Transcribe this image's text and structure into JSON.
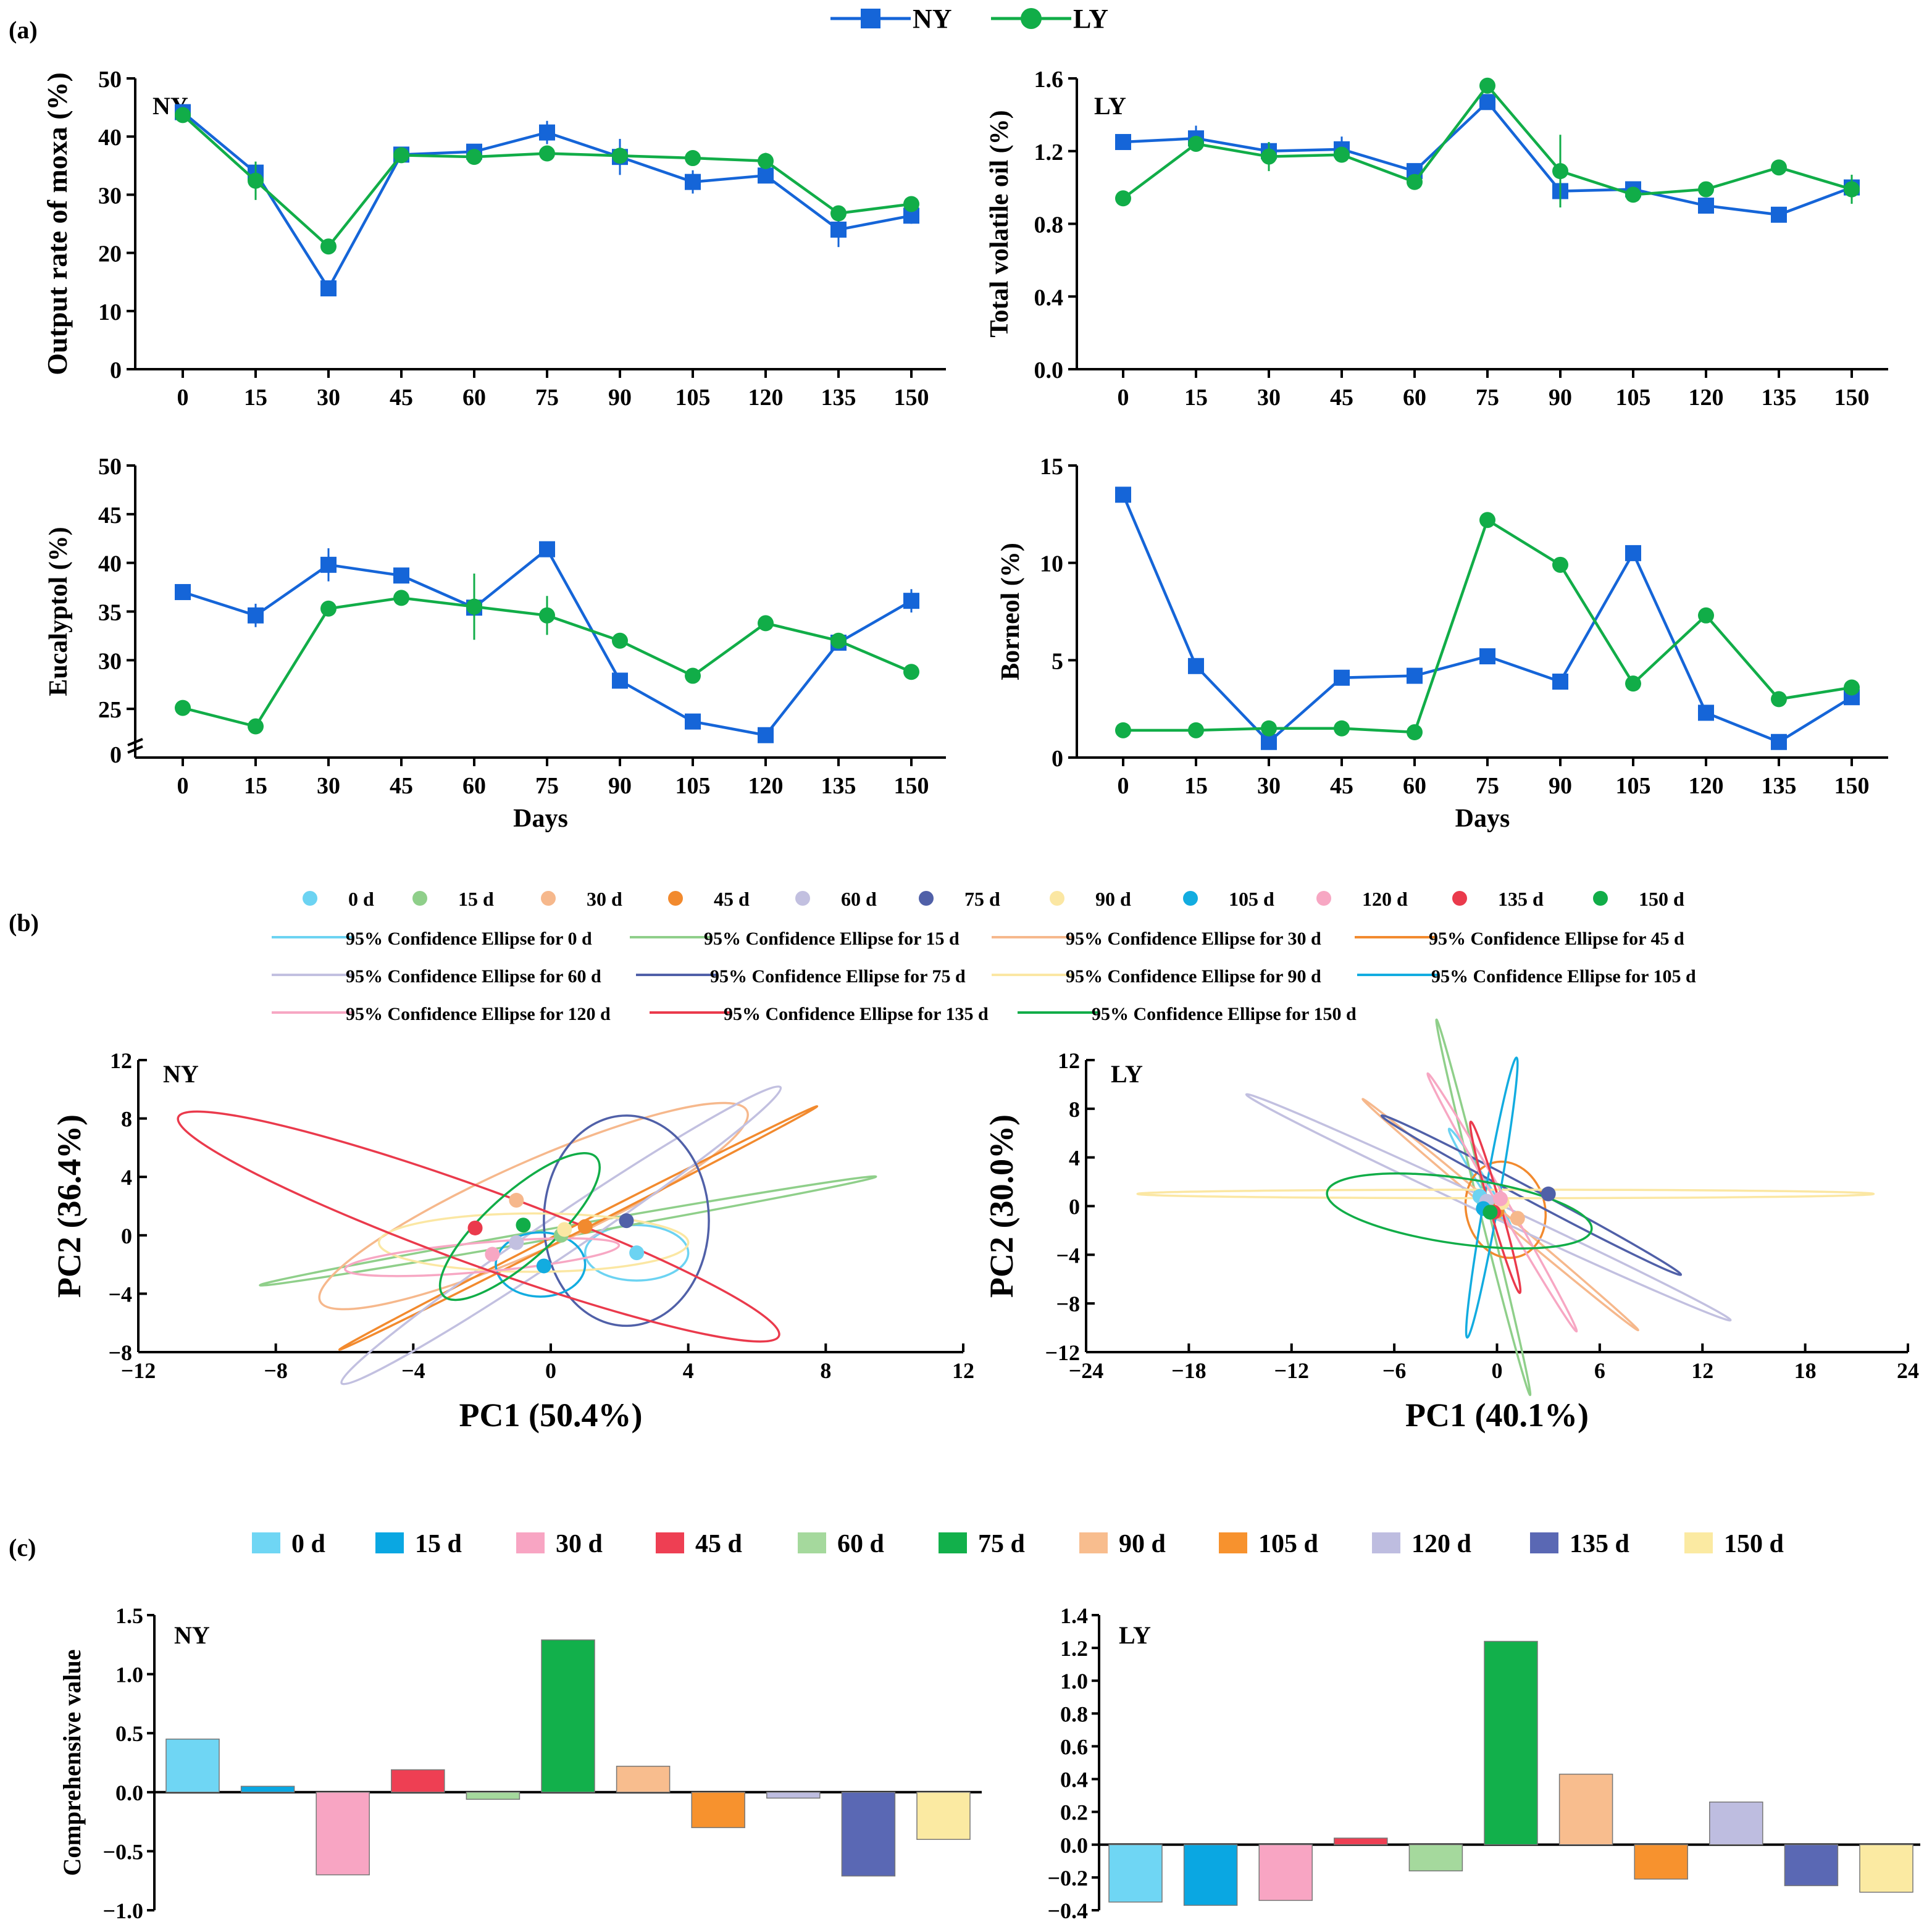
{
  "panels": {
    "a": "(a)",
    "b": "(b)",
    "c": "(c)"
  },
  "colors": {
    "NY": "#1565d8",
    "LY": "#11ad48",
    "d0": "#6cd3f2",
    "d15": "#8fcf8a",
    "d30": "#f6b88c",
    "d45": "#f28a2e",
    "d60": "#c2c0e0",
    "d75": "#5060a8",
    "d90": "#fbe7a3",
    "d105": "#12ace0",
    "d120": "#f7a7c3",
    "d135": "#ea3a4c",
    "d150": "#11ad48",
    "c_d0": "#6fd6f4",
    "c_d15": "#0aa7e2",
    "c_d30": "#f8a5c3",
    "c_d45": "#ee3f53",
    "c_d60": "#a5d99d",
    "c_d75": "#12b04b",
    "c_d90": "#f8bd8e",
    "c_d105": "#f7922e",
    "c_d120": "#bebde0",
    "c_d135": "#5a68b4",
    "c_d150": "#fbeaa2"
  },
  "legend_a": [
    {
      "label": "NY",
      "marker": "square"
    },
    {
      "label": "LY",
      "marker": "circle"
    }
  ],
  "legend_b": {
    "points": [
      "0 d",
      "15 d",
      "30 d",
      "45 d",
      "60 d",
      "75  d",
      "90 d",
      "105 d",
      "120 d",
      "135 d",
      "150 d"
    ],
    "ellipses": [
      "95% Confidence Ellipse for 0 d",
      "95% Confidence Ellipse for 15 d",
      "95% Confidence Ellipse for 30 d",
      "95% Confidence Ellipse for 45 d",
      "95% Confidence Ellipse for 60 d",
      "95% Confidence Ellipse for 75 d",
      "95% Confidence Ellipse for 90 d",
      "95% Confidence Ellipse for 105 d",
      "95% Confidence Ellipse for 120 d",
      "95% Confidence Ellipse for 135 d",
      "95% Confidence Ellipse for 150 d"
    ]
  },
  "legend_c": [
    "0 d",
    "15 d",
    "30 d",
    "45 d",
    "60 d",
    "75 d",
    "90 d",
    "105 d",
    "120 d",
    "135 d",
    "150 d"
  ],
  "chart_data": [
    {
      "type": "line",
      "id": "moxa",
      "tag": "NY",
      "ylabel": "Output rate of moxa (%)",
      "xlabel": "",
      "categories": [
        "0",
        "15",
        "30",
        "45",
        "60",
        "75",
        "90",
        "105",
        "120",
        "135",
        "150"
      ],
      "ylim": [
        0,
        50
      ],
      "yticks": [
        "0",
        "10",
        "20",
        "30",
        "40",
        "50"
      ],
      "ytick_values": [
        0,
        10,
        20,
        30,
        40,
        50
      ],
      "series": [
        {
          "name": "NY",
          "values": [
            44.2,
            33.8,
            13.9,
            36.9,
            37.4,
            40.7,
            36.5,
            32.2,
            33.3,
            24.0,
            26.4
          ],
          "errors": [
            0.6,
            1.0,
            0.5,
            0.8,
            0.7,
            2.0,
            3.1,
            2.0,
            0.7,
            3.0,
            1.4
          ]
        },
        {
          "name": "LY",
          "values": [
            43.7,
            32.4,
            21.1,
            36.8,
            36.5,
            37.1,
            36.7,
            36.3,
            35.8,
            26.8,
            28.4
          ],
          "errors": [
            0.5,
            3.3,
            0.6,
            0.6,
            0.5,
            0.6,
            1.0,
            0.5,
            1.4,
            0.4,
            0.5
          ]
        }
      ]
    },
    {
      "type": "line",
      "id": "oil",
      "tag": "LY",
      "ylabel": "Total volatile oil (%)",
      "xlabel": "",
      "categories": [
        "0",
        "15",
        "30",
        "45",
        "60",
        "75",
        "90",
        "105",
        "120",
        "135",
        "150"
      ],
      "ylim": [
        0,
        1.6
      ],
      "yticks": [
        "0.0",
        "0.4",
        "0.8",
        "1.2",
        "1.6"
      ],
      "ytick_values": [
        0,
        0.4,
        0.8,
        1.2,
        1.6
      ],
      "series": [
        {
          "name": "NY",
          "values": [
            1.25,
            1.27,
            1.2,
            1.21,
            1.09,
            1.47,
            0.98,
            0.99,
            0.9,
            0.85,
            1.0
          ],
          "errors": [
            0.02,
            0.07,
            0.05,
            0.07,
            0.03,
            0.03,
            0.02,
            0.02,
            0.03,
            0.02,
            0.02
          ]
        },
        {
          "name": "LY",
          "values": [
            0.94,
            1.24,
            1.17,
            1.18,
            1.03,
            1.56,
            1.09,
            0.96,
            0.99,
            1.11,
            0.99
          ],
          "errors": [
            0.02,
            0.03,
            0.08,
            0.03,
            0.03,
            0.03,
            0.2,
            0.02,
            0.02,
            0.02,
            0.08
          ]
        }
      ]
    },
    {
      "type": "line",
      "id": "eucalyptol",
      "tag": "",
      "ylabel": "Eucalyptol (%)",
      "xlabel": "Days",
      "categories": [
        "0",
        "15",
        "30",
        "45",
        "60",
        "75",
        "90",
        "105",
        "120",
        "135",
        "150"
      ],
      "axis_break": true,
      "ylim": [
        20,
        50
      ],
      "yticks": [
        "0",
        "25",
        "30",
        "35",
        "40",
        "45",
        "50"
      ],
      "ytick_values": [
        20,
        25,
        30,
        35,
        40,
        45,
        50
      ],
      "series": [
        {
          "name": "NY",
          "values": [
            37.0,
            34.6,
            39.8,
            38.7,
            35.4,
            41.4,
            27.9,
            23.7,
            22.3,
            31.8,
            36.1
          ],
          "errors": [
            0.4,
            1.2,
            1.7,
            0.5,
            3.0,
            0.5,
            0.4,
            0.4,
            0.4,
            0.8,
            1.2
          ]
        },
        {
          "name": "LY",
          "values": [
            25.1,
            23.2,
            35.3,
            36.4,
            35.5,
            34.6,
            32.0,
            28.4,
            33.8,
            32.0,
            28.8
          ],
          "errors": [
            0.3,
            0.3,
            0.3,
            0.4,
            3.4,
            2.0,
            0.3,
            0.3,
            0.3,
            0.3,
            0.3
          ]
        }
      ]
    },
    {
      "type": "line",
      "id": "borneol",
      "tag": "",
      "ylabel": "Borneol (%)",
      "xlabel": "Days",
      "categories": [
        "0",
        "15",
        "30",
        "45",
        "60",
        "75",
        "90",
        "105",
        "120",
        "135",
        "150"
      ],
      "ylim": [
        0,
        15
      ],
      "yticks": [
        "0",
        "5",
        "10",
        "15"
      ],
      "ytick_values": [
        0,
        5,
        10,
        15
      ],
      "series": [
        {
          "name": "NY",
          "values": [
            13.5,
            4.7,
            0.8,
            4.1,
            4.2,
            5.2,
            3.9,
            10.5,
            2.3,
            0.8,
            3.1
          ],
          "errors": [
            0,
            0,
            0,
            0,
            0,
            0,
            0,
            0,
            0,
            0,
            0
          ]
        },
        {
          "name": "LY",
          "values": [
            1.4,
            1.4,
            1.5,
            1.5,
            1.3,
            12.2,
            9.9,
            3.8,
            7.3,
            3.0,
            3.6
          ],
          "errors": [
            0,
            0,
            0,
            0,
            0,
            0,
            0,
            0,
            0,
            0,
            0
          ]
        }
      ]
    },
    {
      "type": "scatter",
      "id": "pca_ny",
      "tag": "NY",
      "xlabel": "PC1 (50.4%)",
      "ylabel": "PC2 (36.4%)",
      "xlim": [
        -12,
        12
      ],
      "ylim": [
        -8,
        12
      ],
      "xticks": [
        "−12",
        "−8",
        "−4",
        "0",
        "4",
        "8",
        "12"
      ],
      "xtick_values": [
        -12,
        -8,
        -4,
        0,
        4,
        8,
        12
      ],
      "yticks": [
        "−8",
        "−4",
        "0",
        "4",
        "8",
        "12"
      ],
      "ytick_values": [
        -8,
        -4,
        0,
        4,
        8,
        12
      ],
      "points": [
        {
          "group": "0 d",
          "x": 2.5,
          "y": -1.2
        },
        {
          "group": "15 d",
          "x": 0.3,
          "y": 0.0
        },
        {
          "group": "30 d",
          "x": -1.0,
          "y": 2.4
        },
        {
          "group": "45 d",
          "x": 1.0,
          "y": 0.6
        },
        {
          "group": "60 d",
          "x": -1.0,
          "y": -0.5
        },
        {
          "group": "75 d",
          "x": 2.2,
          "y": 1.0
        },
        {
          "group": "90 d",
          "x": 0.4,
          "y": 0.4
        },
        {
          "group": "105 d",
          "x": -0.2,
          "y": -2.1
        },
        {
          "group": "120 d",
          "x": -1.7,
          "y": -1.3
        },
        {
          "group": "135 d",
          "x": -2.2,
          "y": 0.5
        },
        {
          "group": "150 d",
          "x": -0.8,
          "y": 0.7
        }
      ],
      "ellipses": [
        {
          "group": "0 d",
          "cx": 2.5,
          "cy": -1.2,
          "rx": 1.5,
          "ry": 1.9,
          "angle": 0
        },
        {
          "group": "15 d",
          "cx": 0.5,
          "cy": 0.3,
          "rx": 9.1,
          "ry": 0.35,
          "angle": 10
        },
        {
          "group": "30 d",
          "cx": -0.5,
          "cy": 2.0,
          "rx": 6.8,
          "ry": 3.0,
          "angle": 24
        },
        {
          "group": "45 d",
          "cx": 0.8,
          "cy": 0.5,
          "rx": 7.8,
          "ry": 0.25,
          "angle": 27
        },
        {
          "group": "60 d",
          "cx": 0.3,
          "cy": 0.0,
          "rx": 7.7,
          "ry": 1.3,
          "angle": 34
        },
        {
          "group": "75 d",
          "cx": 2.2,
          "cy": 1.0,
          "rx": 2.4,
          "ry": 7.2,
          "angle": 0
        },
        {
          "group": "90 d",
          "cx": -0.5,
          "cy": -0.5,
          "rx": 4.5,
          "ry": 2.0,
          "angle": 0
        },
        {
          "group": "105 d",
          "cx": -0.3,
          "cy": -2.0,
          "rx": 1.3,
          "ry": 2.2,
          "angle": 0
        },
        {
          "group": "120 d",
          "cx": -2.0,
          "cy": -1.5,
          "rx": 4.0,
          "ry": 1.0,
          "angle": 5
        },
        {
          "group": "135 d",
          "cx": -2.1,
          "cy": 0.6,
          "rx": 9.3,
          "ry": 2.6,
          "angle": -20
        },
        {
          "group": "150 d",
          "cx": -0.9,
          "cy": 0.6,
          "rx": 3.0,
          "ry": 2.3,
          "angle": 42
        }
      ]
    },
    {
      "type": "scatter",
      "id": "pca_ly",
      "tag": "LY",
      "xlabel": "PC1 (40.1%)",
      "ylabel": "PC2 (30.0%)",
      "xlim": [
        -24,
        24
      ],
      "ylim": [
        -12,
        12
      ],
      "xticks": [
        "−24",
        "−18",
        "−12",
        "−6",
        "0",
        "6",
        "12",
        "18",
        "24"
      ],
      "xtick_values": [
        -24,
        -18,
        -12,
        -6,
        0,
        6,
        12,
        18,
        24
      ],
      "yticks": [
        "−12",
        "−8",
        "−4",
        "0",
        "4",
        "8",
        "12"
      ],
      "ytick_values": [
        -12,
        -8,
        -4,
        0,
        4,
        8,
        12
      ],
      "points": [
        {
          "group": "0 d",
          "x": -1.0,
          "y": 0.8
        },
        {
          "group": "15 d",
          "x": 0.0,
          "y": 0.0
        },
        {
          "group": "30 d",
          "x": 1.2,
          "y": -1.0
        },
        {
          "group": "45 d",
          "x": 0.0,
          "y": -0.4
        },
        {
          "group": "60 d",
          "x": -0.6,
          "y": 0.4
        },
        {
          "group": "75 d",
          "x": 3.0,
          "y": 1.0
        },
        {
          "group": "90 d",
          "x": 0.3,
          "y": 0.3
        },
        {
          "group": "105 d",
          "x": -0.8,
          "y": -0.2
        },
        {
          "group": "120 d",
          "x": 0.2,
          "y": 0.6
        },
        {
          "group": "135 d",
          "x": -0.2,
          "y": -0.5
        },
        {
          "group": "150 d",
          "x": -0.4,
          "y": -0.5
        }
      ],
      "ellipses": [
        {
          "group": "0 d",
          "cx": -1.0,
          "cy": 2.3,
          "rx": 3.4,
          "ry": 0.35,
          "angle": -58
        },
        {
          "group": "15 d",
          "cx": -0.8,
          "cy": -0.1,
          "rx": 11.3,
          "ry": 0.35,
          "angle": -76
        },
        {
          "group": "30 d",
          "cx": 0.2,
          "cy": -0.7,
          "rx": 10.5,
          "ry": 0.3,
          "angle": -40
        },
        {
          "group": "45 d",
          "cx": 0.5,
          "cy": -0.3,
          "rx": 2.3,
          "ry": 4.0,
          "angle": 15
        },
        {
          "group": "60 d",
          "cx": -0.5,
          "cy": -0.1,
          "rx": 15.6,
          "ry": 0.6,
          "angle": -25
        },
        {
          "group": "75 d",
          "cx": 2.0,
          "cy": 0.9,
          "rx": 9.9,
          "ry": 0.5,
          "angle": -28
        },
        {
          "group": "90 d",
          "cx": 0.5,
          "cy": 1.0,
          "rx": 21.5,
          "ry": 0.35,
          "angle": 0
        },
        {
          "group": "105 d",
          "cx": -0.3,
          "cy": 0.7,
          "rx": 8.3,
          "ry": 0.6,
          "angle": 80
        },
        {
          "group": "120 d",
          "cx": 0.3,
          "cy": 0.3,
          "rx": 8.7,
          "ry": 0.4,
          "angle": -60
        },
        {
          "group": "135 d",
          "cx": -0.1,
          "cy": -0.1,
          "rx": 5.2,
          "ry": 0.45,
          "angle": -74
        },
        {
          "group": "150 d",
          "cx": -2.2,
          "cy": -0.4,
          "rx": 7.8,
          "ry": 2.7,
          "angle": -8
        }
      ]
    },
    {
      "type": "bar",
      "id": "comp_ny",
      "tag": "NY",
      "ylabel": "Comprehensive value",
      "xlabel": "",
      "categories": [
        "0 d",
        "15 d",
        "30 d",
        "45 d",
        "60 d",
        "75 d",
        "90 d",
        "105 d",
        "120 d",
        "135 d",
        "150 d"
      ],
      "values": [
        0.45,
        0.05,
        -0.7,
        0.19,
        -0.06,
        1.29,
        0.22,
        -0.3,
        -0.05,
        -0.71,
        -0.4
      ],
      "ylim": [
        -1.0,
        1.5
      ],
      "yticks": [
        "−1.0",
        "−0.5",
        "0.0",
        "0.5",
        "1.0",
        "1.5"
      ],
      "ytick_values": [
        -1.0,
        -0.5,
        0.0,
        0.5,
        1.0,
        1.5
      ]
    },
    {
      "type": "bar",
      "id": "comp_ly",
      "tag": "LY",
      "ylabel": "",
      "xlabel": "",
      "categories": [
        "0 d",
        "15 d",
        "30 d",
        "45 d",
        "60 d",
        "75 d",
        "90 d",
        "105 d",
        "120 d",
        "135 d",
        "150 d"
      ],
      "values": [
        -0.35,
        -0.37,
        -0.34,
        0.04,
        -0.16,
        1.24,
        0.43,
        -0.21,
        0.26,
        -0.25,
        -0.29
      ],
      "ylim": [
        -0.4,
        1.4
      ],
      "yticks": [
        "−0.4",
        "−0.2",
        "0.0",
        "0.2",
        "0.4",
        "0.6",
        "0.8",
        "1.0",
        "1.2",
        "1.4"
      ],
      "ytick_values": [
        -0.4,
        -0.2,
        0.0,
        0.2,
        0.4,
        0.6,
        0.8,
        1.0,
        1.2,
        1.4
      ]
    }
  ]
}
